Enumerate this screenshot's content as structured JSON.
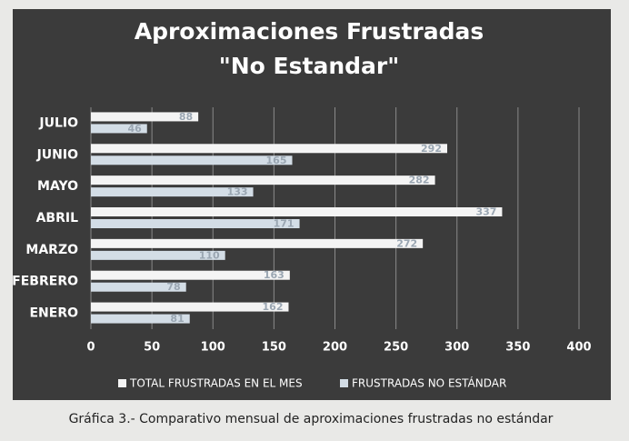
{
  "chart_data": {
    "type": "hbar",
    "title": "Aproximaciones Frustradas",
    "subtitle": "\"No Estandar\"",
    "caption": "Gráfica 3.- Comparativo mensual de aproximaciones frustradas no estándar",
    "categories": [
      "ENERO",
      "FEBRERO",
      "MARZO",
      "ABRIL",
      "MAYO",
      "JUNIO",
      "JULIO"
    ],
    "series": [
      {
        "name": "TOTAL FRUSTRADAS EN EL MES",
        "color": "#f4f4f4",
        "values": [
          162,
          163,
          272,
          337,
          282,
          292,
          88
        ]
      },
      {
        "name": "FRUSTRADAS NO ESTÁNDAR",
        "color": "#d3dde6",
        "values": [
          81,
          78,
          110,
          171,
          133,
          165,
          46
        ]
      }
    ],
    "xlim": [
      0,
      400
    ],
    "xticks": [
      0,
      50,
      100,
      150,
      200,
      250,
      300,
      350,
      400
    ],
    "grid": true,
    "legend": "bottom"
  }
}
